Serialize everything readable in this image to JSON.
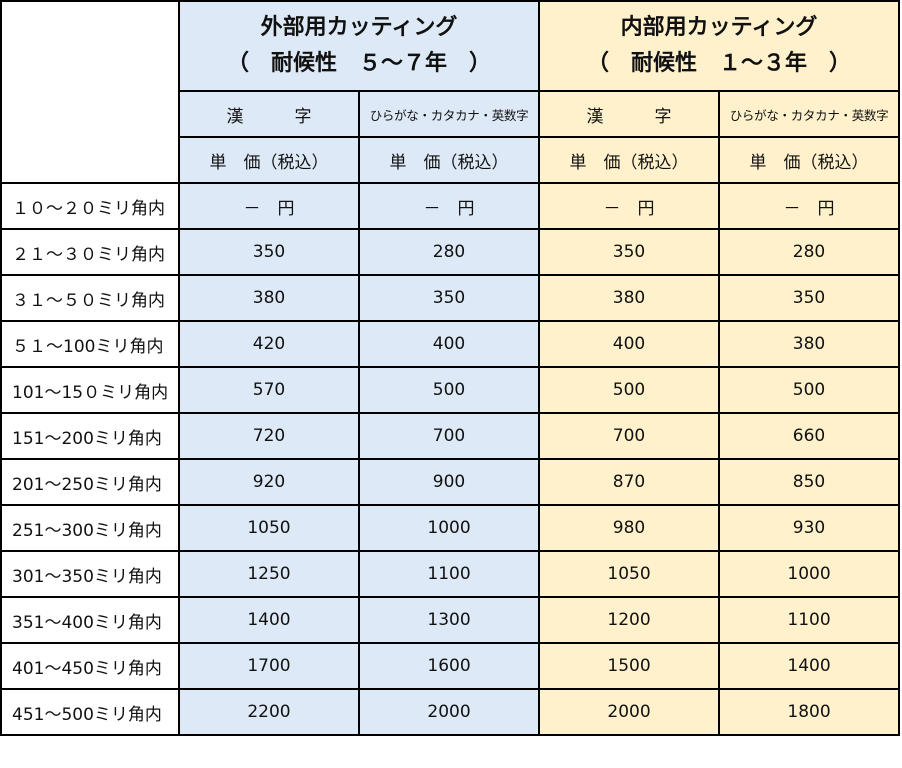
{
  "colors": {
    "external_bg": "#dde9f6",
    "internal_bg": "#fff1cc",
    "border": "#000000"
  },
  "groups": [
    {
      "title": "外部用カッティング",
      "durability": "（　耐候性　５～７年　）",
      "sub_headers": [
        "漢　　　字",
        "ひらがな・カタカナ・英数字"
      ],
      "unit_headers": [
        "単　価（税込）",
        "単　価（税込）"
      ]
    },
    {
      "title": "内部用カッティング",
      "durability": "（　耐候性　１～３年　）",
      "sub_headers": [
        "漢　　　字",
        "ひらがな・カタカナ・英数字"
      ],
      "unit_headers": [
        "単　価（税込）",
        "単　価（税込）"
      ]
    }
  ],
  "rows": [
    {
      "size": "１０～２０ミリ角内",
      "prices": [
        "－　円",
        "－　円",
        "－　円",
        "－　円"
      ]
    },
    {
      "size": "２１～３０ミリ角内",
      "prices": [
        "350",
        "280",
        "350",
        "280"
      ]
    },
    {
      "size": "３１～５０ミリ角内",
      "prices": [
        "380",
        "350",
        "380",
        "350"
      ]
    },
    {
      "size": "５１～100ミリ角内",
      "prices": [
        "420",
        "400",
        "400",
        "380"
      ]
    },
    {
      "size": "101～15０ミリ角内",
      "prices": [
        "570",
        "500",
        "500",
        "500"
      ]
    },
    {
      "size": "151～200ミリ角内",
      "prices": [
        "720",
        "700",
        "700",
        "660"
      ]
    },
    {
      "size": "201～250ミリ角内",
      "prices": [
        "920",
        "900",
        "870",
        "850"
      ]
    },
    {
      "size": "251～300ミリ角内",
      "prices": [
        "1050",
        "1000",
        "980",
        "930"
      ]
    },
    {
      "size": "301～350ミリ角内",
      "prices": [
        "1250",
        "1100",
        "1050",
        "1000"
      ]
    },
    {
      "size": "351～400ミリ角内",
      "prices": [
        "1400",
        "1300",
        "1200",
        "1100"
      ]
    },
    {
      "size": "401～450ミリ角内",
      "prices": [
        "1700",
        "1600",
        "1500",
        "1400"
      ]
    },
    {
      "size": "451～500ミリ角内",
      "prices": [
        "2200",
        "2000",
        "2000",
        "1800"
      ]
    }
  ]
}
